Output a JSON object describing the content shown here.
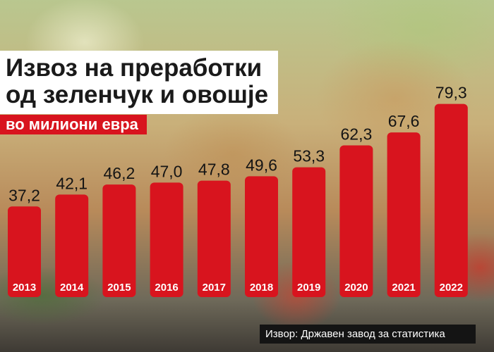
{
  "chart_data": {
    "type": "bar",
    "title_lines": [
      "Извоз на преработки",
      "од зеленчук и овошје"
    ],
    "subtitle": "во милиони евра",
    "categories": [
      "2013",
      "2014",
      "2015",
      "2016",
      "2017",
      "2018",
      "2019",
      "2020",
      "2021",
      "2022"
    ],
    "values": [
      37.2,
      42.1,
      46.2,
      47.0,
      47.8,
      49.6,
      53.3,
      62.3,
      67.6,
      79.3
    ],
    "value_labels": [
      "37,2",
      "42,1",
      "46,2",
      "47,0",
      "47,8",
      "49,6",
      "53,3",
      "62,3",
      "67,6",
      "79,3"
    ],
    "xlabel": "",
    "ylabel": "",
    "ylim": [
      0,
      80
    ],
    "grid": false,
    "bar_color": "#d8141e"
  },
  "source": "Извор: Државен завод за статистика"
}
